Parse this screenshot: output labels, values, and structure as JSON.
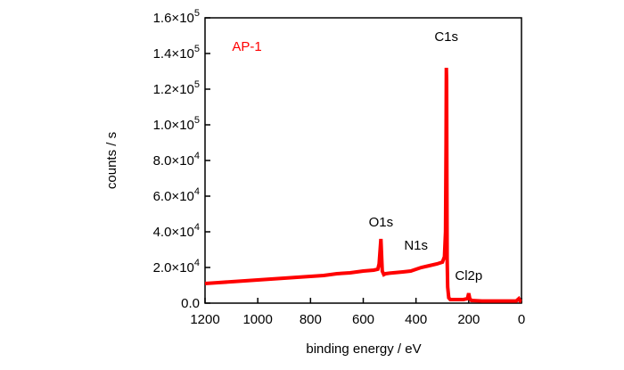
{
  "chart_data": {
    "type": "line",
    "xlabel": "binding energy / eV",
    "ylabel": "counts / s",
    "xlim": [
      1200,
      0
    ],
    "ylim": [
      0,
      160000
    ],
    "x_reversed": true,
    "x_ticks": [
      1200,
      1000,
      800,
      600,
      400,
      200,
      0
    ],
    "x_tick_labels": [
      "1200",
      "1000",
      "800",
      "600",
      "400",
      "200",
      "0"
    ],
    "y_ticks": [
      {
        "mantissa": "0.0",
        "exp": ""
      },
      {
        "mantissa": "2.0",
        "exp": "4"
      },
      {
        "mantissa": "4.0",
        "exp": "4"
      },
      {
        "mantissa": "6.0",
        "exp": "4"
      },
      {
        "mantissa": "8.0",
        "exp": "4"
      },
      {
        "mantissa": "1.0",
        "exp": "5"
      },
      {
        "mantissa": "1.2",
        "exp": "5"
      },
      {
        "mantissa": "1.4",
        "exp": "5"
      },
      {
        "mantissa": "1.6",
        "exp": "5"
      }
    ],
    "y_tick_values": [
      0,
      20000,
      40000,
      60000,
      80000,
      100000,
      120000,
      140000,
      160000
    ],
    "series": [
      {
        "name": "AP-1",
        "color": "#ff0000",
        "x": [
          1200,
          1150,
          1100,
          1050,
          1000,
          950,
          900,
          850,
          800,
          750,
          700,
          650,
          600,
          560,
          545,
          540,
          533,
          528,
          522,
          515,
          500,
          450,
          420,
          400,
          380,
          350,
          320,
          300,
          292,
          288,
          286,
          285,
          284,
          283,
          282,
          280,
          276,
          270,
          250,
          220,
          205,
          200,
          196,
          190,
          150,
          100,
          50,
          20,
          10,
          5,
          0
        ],
        "y": [
          11000,
          11500,
          12000,
          12500,
          13000,
          13500,
          14000,
          14500,
          15000,
          15500,
          16500,
          17000,
          18000,
          18500,
          19000,
          22000,
          36000,
          18000,
          16000,
          16500,
          16800,
          17500,
          18000,
          19000,
          20000,
          21000,
          22000,
          23000,
          26000,
          40000,
          90000,
          132000,
          125000,
          70000,
          25000,
          9000,
          3000,
          2000,
          2000,
          2000,
          2500,
          5500,
          2500,
          1500,
          1200,
          1200,
          1200,
          1200,
          2500,
          1200,
          1000
        ]
      }
    ],
    "series_label": "AP-1",
    "annotations": [
      {
        "text": "C1s",
        "x": 285,
        "y": 147000
      },
      {
        "text": "O1s",
        "x": 533,
        "y": 43000
      },
      {
        "text": "N1s",
        "x": 400,
        "y": 30000
      },
      {
        "text": "Cl2p",
        "x": 200,
        "y": 13000
      }
    ],
    "grid": false
  }
}
